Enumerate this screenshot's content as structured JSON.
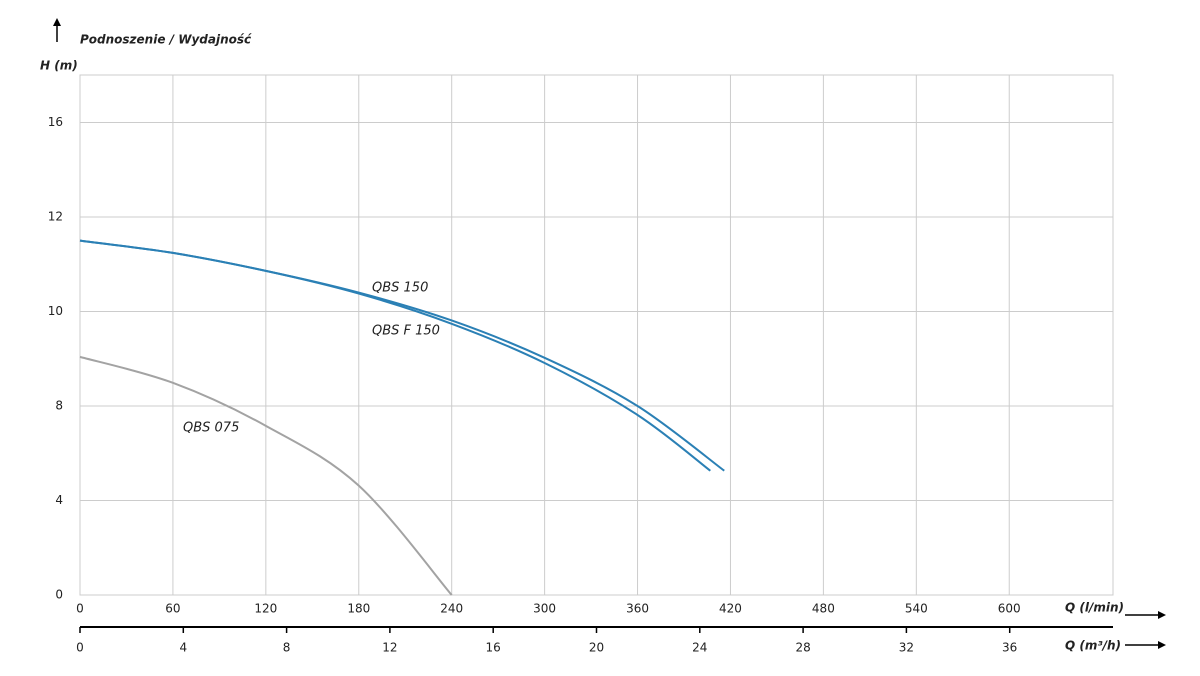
{
  "chart_data": {
    "type": "line",
    "title": "Podnoszenie / Wydajność",
    "y_label": "H (m)",
    "x_label": "Q (l/min)",
    "x2_label": "Q (m³/h)",
    "xlim": [
      0,
      667
    ],
    "xticks": [
      0,
      60,
      120,
      180,
      240,
      300,
      360,
      420,
      480,
      540,
      600
    ],
    "x2lim": [
      0,
      40
    ],
    "x2ticks": [
      0,
      4,
      8,
      12,
      16,
      20,
      24,
      28,
      32,
      36
    ],
    "ylim": [
      0,
      18
    ],
    "yticks": [
      0,
      4,
      8,
      10,
      12,
      16
    ],
    "grid": true,
    "series": [
      {
        "name": "QBS 150",
        "color": "#2b80b5",
        "x": [
          0,
          60,
          120,
          180,
          240,
          300,
          360,
          416
        ],
        "values": [
          11.5,
          11.24,
          10.86,
          10.4,
          9.81,
          9.02,
          8.0,
          5.26
        ]
      },
      {
        "name": "QBS F 150",
        "color": "#2b80b5",
        "x": [
          0,
          60,
          120,
          180,
          240,
          300,
          360,
          407
        ],
        "values": [
          11.5,
          11.24,
          10.86,
          10.38,
          9.74,
          8.91,
          7.62,
          5.26
        ]
      },
      {
        "name": "QBS 075",
        "color": "#a3a3a3",
        "x": [
          0,
          60,
          120,
          180,
          240
        ],
        "values": [
          9.04,
          8.49,
          7.16,
          4.63,
          0
        ]
      }
    ]
  }
}
